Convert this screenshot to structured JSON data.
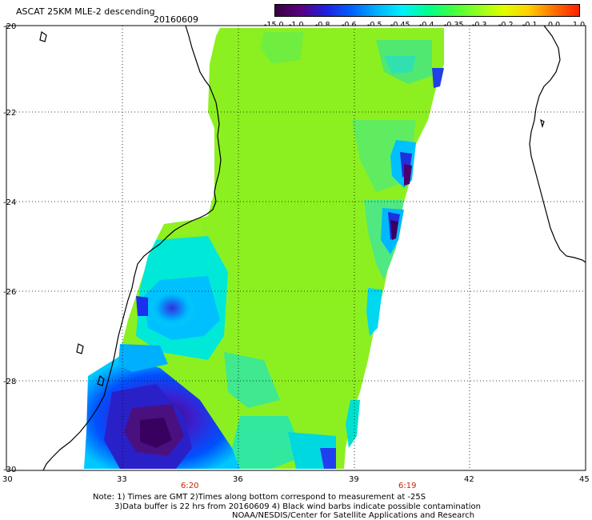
{
  "header": {
    "title": "ASCAT 25KM MLE-2 descending",
    "date": "20160609"
  },
  "colorbar": {
    "labels": [
      "-15.0",
      "-1.0",
      "-0.8",
      "-0.6",
      "-0.5",
      "-0.45",
      "-0.4",
      "-0.35",
      "-0.3",
      "-0.2",
      "-0.1",
      "0.0",
      "1.0"
    ],
    "colors": [
      "#3a0040",
      "#5a0080",
      "#2020e0",
      "#0060ff",
      "#00b0ff",
      "#00f0ff",
      "#00ff90",
      "#40ff40",
      "#90ff20",
      "#e0ff00",
      "#ffd000",
      "#ff7000",
      "#ff2000"
    ]
  },
  "map": {
    "lat_labels": [
      "-20",
      "-22",
      "-24",
      "-26",
      "-28",
      "-30"
    ],
    "lon_labels": [
      "30",
      "33",
      "36",
      "39",
      "42",
      "45"
    ],
    "time_labels": [
      "6:20",
      "6:19"
    ],
    "time_color": "#cc2200"
  },
  "footer": {
    "line1": "Note: 1) Times are GMT 2)Times along bottom correspond to measurement at -25S",
    "line2": "3)Data buffer is 22 hrs from 20160609 4) Black wind barbs indicate possible contamination",
    "line3": "NOAA/NESDIS/Center for Satellite Applications and Research"
  }
}
